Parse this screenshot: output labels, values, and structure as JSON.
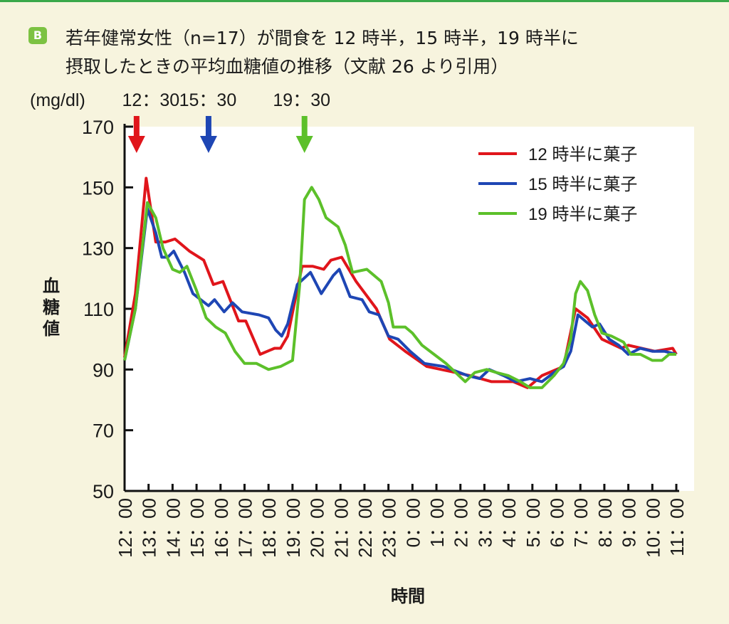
{
  "badge": "B",
  "title_line1": "若年健常女性（n=17）が間食を 12 時半，15 時半，19 時半に",
  "title_line2": "摂取したときの平均血糖値の推移（文献 26 より引用）",
  "chart_data": {
    "type": "line",
    "ylabel_unit": "(mg/dl)",
    "ylabel": "血糖値",
    "xlabel": "時間",
    "ylim": [
      50,
      170
    ],
    "yticks": [
      50,
      70,
      90,
      110,
      130,
      150,
      170
    ],
    "xlim_hours_from_12": [
      0,
      23
    ],
    "xtick_labels": [
      "12：00",
      "13：00",
      "14：00",
      "15：00",
      "16：00",
      "17：00",
      "18：00",
      "19：00",
      "20：00",
      "21：00",
      "22：00",
      "23：00",
      "0：00",
      "1：00",
      "2：00",
      "3：00",
      "4：00",
      "5：00",
      "6：00",
      "7：00",
      "8：00",
      "9：00",
      "10：00",
      "11：00"
    ],
    "x_units": "hours elapsed since 12:00",
    "markers": [
      {
        "label": "12：30",
        "hour": 0.5,
        "color": "#e0151b"
      },
      {
        "label": "15：30",
        "hour": 3.5,
        "color": "#1e46b4"
      },
      {
        "label": "19：30",
        "hour": 7.5,
        "color": "#5cc02a"
      }
    ],
    "legend_position": "top-right",
    "series": [
      {
        "name": "12 時半に菓子",
        "color": "#e0151b",
        "x": [
          0,
          0.45,
          0.9,
          1.3,
          1.7,
          2.1,
          2.7,
          3.3,
          3.7,
          4.1,
          4.75,
          5.05,
          5.65,
          6.25,
          6.5,
          6.8,
          7.4,
          7.85,
          8.3,
          8.6,
          9.05,
          9.65,
          10.5,
          11.05,
          11.7,
          12.6,
          13.8,
          14.4,
          15.3,
          16.2,
          16.8,
          17.4,
          18.3,
          18.8,
          19.3,
          19.9,
          20.7,
          21.0,
          22.1,
          22.85,
          23.0
        ],
        "y": [
          94,
          115,
          153,
          132,
          132,
          133,
          129,
          126,
          118,
          119,
          106,
          106,
          95,
          97,
          97,
          101,
          124,
          124,
          123,
          126,
          127,
          119,
          110,
          100,
          96,
          91,
          89,
          88,
          86,
          86,
          84,
          88,
          91,
          110,
          107,
          100,
          97,
          98,
          96,
          97,
          95
        ]
      },
      {
        "name": "15 時半に菓子",
        "color": "#1e46b4",
        "x": [
          0,
          0.45,
          0.95,
          1.3,
          1.55,
          1.8,
          2.05,
          2.5,
          2.85,
          3.5,
          3.75,
          4.15,
          4.5,
          4.9,
          5.6,
          6.0,
          6.3,
          6.55,
          6.8,
          7.2,
          7.75,
          8.2,
          8.7,
          8.95,
          9.4,
          9.9,
          10.2,
          10.6,
          11.0,
          11.4,
          11.9,
          12.5,
          13.3,
          14.3,
          14.8,
          15.2,
          15.8,
          16.3,
          16.9,
          17.4,
          17.9,
          18.3,
          18.6,
          18.9,
          19.2,
          19.5,
          19.8,
          20.2,
          20.6,
          21.0,
          21.5,
          22.0,
          22.5,
          23.0
        ],
        "y": [
          93,
          110,
          143,
          135,
          127,
          127,
          129,
          122,
          115,
          111,
          113,
          109,
          112,
          109,
          108,
          107,
          103,
          101,
          105,
          118,
          122,
          115,
          121,
          123,
          114,
          113,
          109,
          108,
          101,
          100,
          96,
          92,
          91,
          88,
          87,
          90,
          88,
          86,
          87,
          86,
          89,
          91,
          96,
          108,
          106,
          104,
          105,
          100,
          98,
          95,
          97,
          96,
          96,
          95
        ]
      },
      {
        "name": "19 時半に菓子",
        "color": "#5cc02a",
        "x": [
          0,
          0.45,
          0.95,
          1.3,
          1.6,
          2.0,
          2.3,
          2.6,
          3.0,
          3.4,
          3.8,
          4.2,
          4.6,
          5.0,
          5.5,
          6.0,
          6.5,
          7.0,
          7.3,
          7.5,
          7.8,
          8.1,
          8.4,
          8.9,
          9.2,
          9.5,
          10.1,
          10.7,
          11.0,
          11.2,
          11.7,
          12.0,
          12.4,
          12.9,
          13.4,
          13.8,
          14.2,
          14.6,
          15.1,
          15.5,
          16.0,
          16.5,
          16.9,
          17.4,
          17.9,
          18.3,
          18.6,
          18.8,
          19.0,
          19.3,
          19.6,
          19.9,
          20.3,
          20.8,
          21.1,
          21.5,
          22.0,
          22.4,
          22.7,
          23.0
        ],
        "y": [
          93,
          110,
          145,
          140,
          130,
          123,
          122,
          124,
          116,
          107,
          104,
          102,
          96,
          92,
          92,
          90,
          91,
          93,
          118,
          146,
          150,
          146,
          140,
          137,
          131,
          122,
          123,
          119,
          112,
          104,
          104,
          102,
          98,
          95,
          92,
          89,
          86,
          89,
          90,
          89,
          88,
          86,
          84,
          84,
          88,
          92,
          100,
          115,
          119,
          116,
          108,
          102,
          101,
          99,
          95,
          95,
          93,
          93,
          95,
          95
        ]
      }
    ]
  }
}
